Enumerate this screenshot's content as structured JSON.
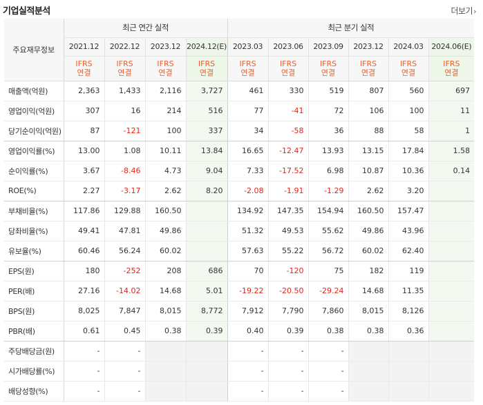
{
  "header": {
    "title": "기업실적분석",
    "more_label": "더보기",
    "more_icon": "chevron-right-icon"
  },
  "table": {
    "corner_label": "주요재무정보",
    "annual_group": "최근 연간 실적",
    "quarter_group": "최근 분기 실적",
    "periods": [
      {
        "label": "2021.12",
        "ifrs": "IFRS",
        "basis": "연결",
        "est": false
      },
      {
        "label": "2022.12",
        "ifrs": "IFRS",
        "basis": "연결",
        "est": false
      },
      {
        "label": "2023.12",
        "ifrs": "IFRS",
        "basis": "연결",
        "est": false
      },
      {
        "label": "2024.12(E)",
        "ifrs": "IFRS",
        "basis": "연결",
        "est": true
      },
      {
        "label": "2023.03",
        "ifrs": "IFRS",
        "basis": "연결",
        "est": false
      },
      {
        "label": "2023.06",
        "ifrs": "IFRS",
        "basis": "연결",
        "est": false
      },
      {
        "label": "2023.09",
        "ifrs": "IFRS",
        "basis": "연결",
        "est": false
      },
      {
        "label": "2023.12",
        "ifrs": "IFRS",
        "basis": "연결",
        "est": false
      },
      {
        "label": "2024.03",
        "ifrs": "IFRS",
        "basis": "연결",
        "est": false
      },
      {
        "label": "2024.06(E)",
        "ifrs": "IFRS",
        "basis": "연결",
        "est": true
      }
    ],
    "rows": [
      {
        "label": "매출액(억원)",
        "values": [
          "2,363",
          "1,433",
          "2,116",
          "3,727",
          "461",
          "330",
          "519",
          "807",
          "560",
          "697"
        ]
      },
      {
        "label": "영업이익(억원)",
        "values": [
          "307",
          "16",
          "214",
          "516",
          "77",
          "-41",
          "72",
          "106",
          "100",
          "11"
        ]
      },
      {
        "label": "당기순이익(억원)",
        "values": [
          "87",
          "-121",
          "100",
          "337",
          "34",
          "-58",
          "36",
          "88",
          "58",
          "1"
        ],
        "section_end": true
      },
      {
        "label": "영업이익률(%)",
        "values": [
          "13.00",
          "1.08",
          "10.11",
          "13.84",
          "16.65",
          "-12.47",
          "13.93",
          "13.15",
          "17.84",
          "1.58"
        ]
      },
      {
        "label": "순이익률(%)",
        "values": [
          "3.67",
          "-8.46",
          "4.73",
          "9.04",
          "7.33",
          "-17.52",
          "6.98",
          "10.87",
          "10.36",
          "0.14"
        ]
      },
      {
        "label": "ROE(%)",
        "values": [
          "2.27",
          "-3.17",
          "2.62",
          "8.20",
          "-2.08",
          "-1.91",
          "-1.29",
          "2.62",
          "3.20",
          ""
        ],
        "section_end": true
      },
      {
        "label": "부채비율(%)",
        "values": [
          "117.86",
          "129.88",
          "160.50",
          "",
          "134.92",
          "147.35",
          "154.94",
          "160.50",
          "157.47",
          ""
        ]
      },
      {
        "label": "당좌비율(%)",
        "values": [
          "49.41",
          "47.81",
          "49.86",
          "",
          "51.32",
          "49.53",
          "55.62",
          "49.86",
          "43.96",
          ""
        ]
      },
      {
        "label": "유보율(%)",
        "values": [
          "60.46",
          "56.24",
          "60.02",
          "",
          "57.63",
          "55.22",
          "56.72",
          "60.02",
          "62.40",
          ""
        ],
        "section_end": true
      },
      {
        "label": "EPS(원)",
        "values": [
          "180",
          "-252",
          "208",
          "686",
          "70",
          "-120",
          "75",
          "182",
          "119",
          ""
        ]
      },
      {
        "label": "PER(배)",
        "values": [
          "27.16",
          "-14.02",
          "14.68",
          "5.01",
          "-19.22",
          "-20.50",
          "-29.24",
          "14.68",
          "11.35",
          ""
        ]
      },
      {
        "label": "BPS(원)",
        "values": [
          "8,025",
          "7,847",
          "8,015",
          "8,772",
          "7,912",
          "7,790",
          "7,860",
          "8,015",
          "8,126",
          ""
        ]
      },
      {
        "label": "PBR(배)",
        "values": [
          "0.61",
          "0.45",
          "0.38",
          "0.39",
          "0.40",
          "0.39",
          "0.38",
          "0.38",
          "0.36",
          ""
        ],
        "section_end": true
      },
      {
        "label": "주당배당금(원)",
        "values": [
          "-",
          "-",
          "",
          "",
          "-",
          "-",
          "-",
          "",
          "",
          ""
        ]
      },
      {
        "label": "시가배당률(%)",
        "values": [
          "-",
          "-",
          "",
          "",
          "-",
          "-",
          "-",
          "",
          "",
          ""
        ]
      },
      {
        "label": "배당성향(%)",
        "values": [
          "-",
          "-",
          "",
          "",
          "-",
          "-",
          "-",
          "",
          "",
          ""
        ]
      }
    ]
  },
  "colors": {
    "negative": "#e4241a",
    "ifrs": "#e8602c",
    "estimate_bg": "#eef6ea"
  }
}
